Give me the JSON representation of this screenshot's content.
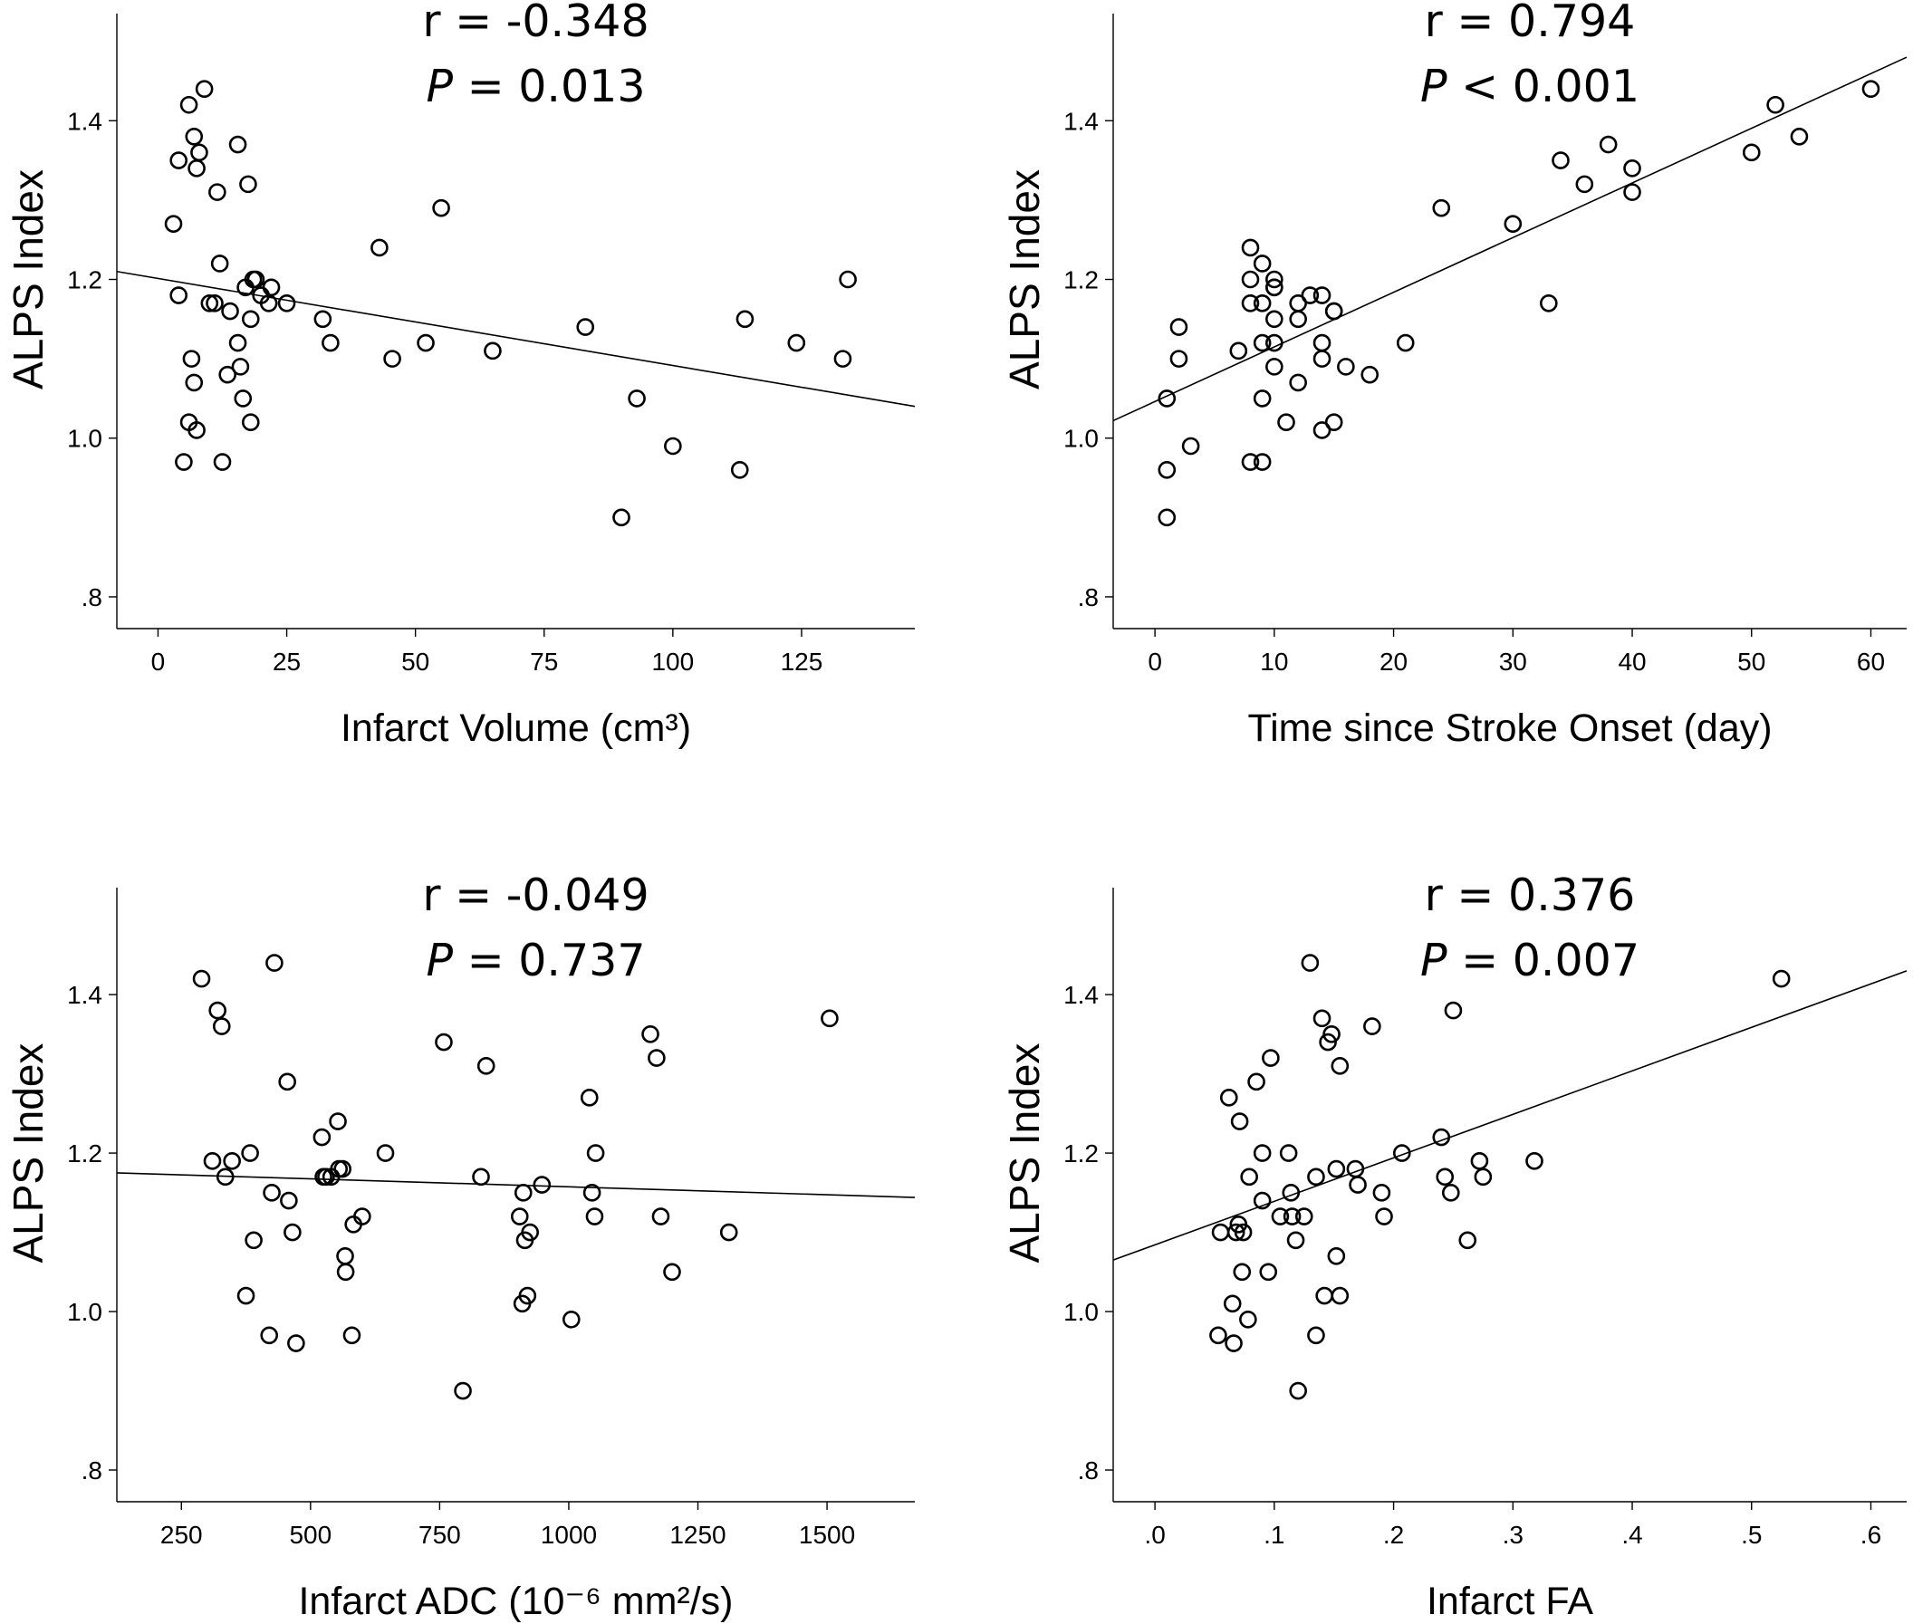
{
  "chart_data": [
    {
      "type": "scatter",
      "xlabel": "Infarct Volume (cm³)",
      "ylabel": "ALPS Index",
      "xlim": [
        -8,
        147
      ],
      "ylim": [
        0.76,
        1.535
      ],
      "xticks": [
        0,
        25,
        50,
        75,
        100,
        125
      ],
      "xtick_labels": [
        "0",
        "25",
        "50",
        "75",
        "100",
        "125"
      ],
      "yticks": [
        0.8,
        1.0,
        1.2,
        1.4
      ],
      "ytick_labels": [
        ".8",
        "1.0",
        "1.2",
        "1.4"
      ],
      "r_text": "r = -0.348",
      "p_label": "P",
      "p_text": " = 0.013",
      "fit_line": {
        "x1": -8,
        "y1": 1.21,
        "x2": 147,
        "y2": 1.04
      },
      "points": [
        [
          3,
          1.27
        ],
        [
          4,
          1.35
        ],
        [
          4,
          1.18
        ],
        [
          5,
          0.97
        ],
        [
          6,
          1.02
        ],
        [
          6,
          1.42
        ],
        [
          6.5,
          1.1
        ],
        [
          7,
          1.07
        ],
        [
          7,
          1.38
        ],
        [
          7.5,
          1.34
        ],
        [
          7.5,
          1.01
        ],
        [
          8,
          1.36
        ],
        [
          9,
          1.44
        ],
        [
          10,
          1.17
        ],
        [
          11,
          1.17
        ],
        [
          11.5,
          1.31
        ],
        [
          12,
          1.22
        ],
        [
          12.5,
          0.97
        ],
        [
          13.5,
          1.08
        ],
        [
          14,
          1.16
        ],
        [
          15.5,
          1.12
        ],
        [
          15.5,
          1.37
        ],
        [
          16,
          1.09
        ],
        [
          16.5,
          1.05
        ],
        [
          17,
          1.19
        ],
        [
          17.5,
          1.32
        ],
        [
          18,
          1.15
        ],
        [
          18,
          1.02
        ],
        [
          18.5,
          1.2
        ],
        [
          19,
          1.2
        ],
        [
          20,
          1.18
        ],
        [
          21.5,
          1.17
        ],
        [
          22,
          1.19
        ],
        [
          25,
          1.17
        ],
        [
          32,
          1.15
        ],
        [
          33.5,
          1.12
        ],
        [
          43,
          1.24
        ],
        [
          45.5,
          1.1
        ],
        [
          52,
          1.12
        ],
        [
          55,
          1.29
        ],
        [
          65,
          1.11
        ],
        [
          83,
          1.14
        ],
        [
          90,
          0.9
        ],
        [
          93,
          1.05
        ],
        [
          100,
          0.99
        ],
        [
          113,
          0.96
        ],
        [
          114,
          1.15
        ],
        [
          124,
          1.12
        ],
        [
          133,
          1.1
        ],
        [
          134,
          1.2
        ]
      ]
    },
    {
      "type": "scatter",
      "xlabel": "Time since Stroke Onset (day)",
      "ylabel": "ALPS Index",
      "xlim": [
        -3.5,
        63
      ],
      "ylim": [
        0.76,
        1.535
      ],
      "xticks": [
        0,
        10,
        20,
        30,
        40,
        50,
        60
      ],
      "xtick_labels": [
        "0",
        "10",
        "20",
        "30",
        "40",
        "50",
        "60"
      ],
      "yticks": [
        0.8,
        1.0,
        1.2,
        1.4
      ],
      "ytick_labels": [
        ".8",
        "1.0",
        "1.2",
        "1.4"
      ],
      "r_text": "r = 0.794",
      "p_label": "P",
      "p_text": " < 0.001",
      "fit_line": {
        "x1": -3.5,
        "y1": 1.022,
        "x2": 63,
        "y2": 1.48
      },
      "points": [
        [
          1,
          0.9
        ],
        [
          1,
          0.96
        ],
        [
          1,
          1.05
        ],
        [
          2,
          1.1
        ],
        [
          2,
          1.14
        ],
        [
          3,
          0.99
        ],
        [
          7,
          1.11
        ],
        [
          8,
          0.97
        ],
        [
          8,
          1.17
        ],
        [
          8,
          1.2
        ],
        [
          8,
          1.24
        ],
        [
          9,
          0.97
        ],
        [
          9,
          1.05
        ],
        [
          9,
          1.12
        ],
        [
          9,
          1.17
        ],
        [
          9,
          1.22
        ],
        [
          10,
          1.09
        ],
        [
          10,
          1.12
        ],
        [
          10,
          1.15
        ],
        [
          10,
          1.19
        ],
        [
          10,
          1.19
        ],
        [
          10,
          1.2
        ],
        [
          11,
          1.02
        ],
        [
          12,
          1.07
        ],
        [
          12,
          1.15
        ],
        [
          12,
          1.17
        ],
        [
          13,
          1.18
        ],
        [
          14,
          1.01
        ],
        [
          14,
          1.1
        ],
        [
          14,
          1.12
        ],
        [
          14,
          1.18
        ],
        [
          15,
          1.02
        ],
        [
          15,
          1.16
        ],
        [
          15,
          1.16
        ],
        [
          16,
          1.09
        ],
        [
          18,
          1.08
        ],
        [
          21,
          1.12
        ],
        [
          24,
          1.29
        ],
        [
          30,
          1.27
        ],
        [
          33,
          1.17
        ],
        [
          34,
          1.35
        ],
        [
          36,
          1.32
        ],
        [
          38,
          1.37
        ],
        [
          40,
          1.31
        ],
        [
          40,
          1.34
        ],
        [
          50,
          1.36
        ],
        [
          52,
          1.42
        ],
        [
          54,
          1.38
        ],
        [
          60,
          1.44
        ]
      ]
    },
    {
      "type": "scatter",
      "xlabel": "Infarct ADC (10⁻⁶ mm²/s)",
      "ylabel": "ALPS Index",
      "xlim": [
        125,
        1670
      ],
      "ylim": [
        0.76,
        1.535
      ],
      "xticks": [
        250,
        500,
        750,
        1000,
        1250,
        1500
      ],
      "xtick_labels": [
        "250",
        "500",
        "750",
        "1000",
        "1250",
        "1500"
      ],
      "yticks": [
        0.8,
        1.0,
        1.2,
        1.4
      ],
      "ytick_labels": [
        ".8",
        "1.0",
        "1.2",
        "1.4"
      ],
      "r_text": "r = -0.049",
      "p_label": "P",
      "p_text": " = 0.737",
      "fit_line": {
        "x1": 125,
        "y1": 1.175,
        "x2": 1670,
        "y2": 1.144
      },
      "points": [
        [
          289,
          1.42
        ],
        [
          310,
          1.19
        ],
        [
          320,
          1.38
        ],
        [
          328,
          1.36
        ],
        [
          335,
          1.17
        ],
        [
          348,
          1.19
        ],
        [
          375,
          1.02
        ],
        [
          383,
          1.2
        ],
        [
          390,
          1.09
        ],
        [
          420,
          0.97
        ],
        [
          425,
          1.15
        ],
        [
          430,
          1.44
        ],
        [
          455,
          1.29
        ],
        [
          458,
          1.14
        ],
        [
          465,
          1.1
        ],
        [
          472,
          0.96
        ],
        [
          522,
          1.22
        ],
        [
          525,
          1.17
        ],
        [
          530,
          1.17
        ],
        [
          540,
          1.17
        ],
        [
          553,
          1.24
        ],
        [
          555,
          1.18
        ],
        [
          562,
          1.18
        ],
        [
          567,
          1.07
        ],
        [
          568,
          1.05
        ],
        [
          580,
          0.97
        ],
        [
          583,
          1.11
        ],
        [
          600,
          1.12
        ],
        [
          645,
          1.2
        ],
        [
          758,
          1.34
        ],
        [
          795,
          0.9
        ],
        [
          830,
          1.17
        ],
        [
          840,
          1.31
        ],
        [
          905,
          1.12
        ],
        [
          910,
          1.01
        ],
        [
          912,
          1.15
        ],
        [
          915,
          1.09
        ],
        [
          920,
          1.02
        ],
        [
          925,
          1.1
        ],
        [
          948,
          1.16
        ],
        [
          1005,
          0.99
        ],
        [
          1040,
          1.27
        ],
        [
          1045,
          1.15
        ],
        [
          1050,
          1.12
        ],
        [
          1052,
          1.2
        ],
        [
          1158,
          1.35
        ],
        [
          1170,
          1.32
        ],
        [
          1178,
          1.12
        ],
        [
          1200,
          1.05
        ],
        [
          1310,
          1.1
        ],
        [
          1505,
          1.37
        ]
      ]
    },
    {
      "type": "scatter",
      "xlabel": "Infarct FA",
      "ylabel": "ALPS Index",
      "xlim": [
        -0.035,
        0.63
      ],
      "ylim": [
        0.76,
        1.535
      ],
      "xticks": [
        0.0,
        0.1,
        0.2,
        0.3,
        0.4,
        0.5,
        0.6
      ],
      "xtick_labels": [
        ".0",
        ".1",
        ".2",
        ".3",
        ".4",
        ".5",
        ".6"
      ],
      "yticks": [
        0.8,
        1.0,
        1.2,
        1.4
      ],
      "ytick_labels": [
        ".8",
        "1.0",
        "1.2",
        "1.4"
      ],
      "r_text": "r = 0.376",
      "p_label": "P",
      "p_text": " = 0.007",
      "fit_line": {
        "x1": -0.035,
        "y1": 1.065,
        "x2": 0.63,
        "y2": 1.43
      },
      "points": [
        [
          0.053,
          0.97
        ],
        [
          0.055,
          1.1
        ],
        [
          0.062,
          1.27
        ],
        [
          0.065,
          1.01
        ],
        [
          0.066,
          0.96
        ],
        [
          0.068,
          1.1
        ],
        [
          0.07,
          1.11
        ],
        [
          0.071,
          1.24
        ],
        [
          0.073,
          1.05
        ],
        [
          0.074,
          1.1
        ],
        [
          0.078,
          0.99
        ],
        [
          0.079,
          1.17
        ],
        [
          0.085,
          1.29
        ],
        [
          0.09,
          1.14
        ],
        [
          0.09,
          1.2
        ],
        [
          0.095,
          1.05
        ],
        [
          0.097,
          1.32
        ],
        [
          0.105,
          1.12
        ],
        [
          0.112,
          1.2
        ],
        [
          0.114,
          1.15
        ],
        [
          0.115,
          1.12
        ],
        [
          0.118,
          1.09
        ],
        [
          0.12,
          0.9
        ],
        [
          0.125,
          1.12
        ],
        [
          0.13,
          1.44
        ],
        [
          0.135,
          0.97
        ],
        [
          0.135,
          1.17
        ],
        [
          0.14,
          1.37
        ],
        [
          0.142,
          1.02
        ],
        [
          0.145,
          1.34
        ],
        [
          0.148,
          1.35
        ],
        [
          0.152,
          1.18
        ],
        [
          0.152,
          1.07
        ],
        [
          0.155,
          1.31
        ],
        [
          0.155,
          1.02
        ],
        [
          0.168,
          1.18
        ],
        [
          0.17,
          1.16
        ],
        [
          0.182,
          1.36
        ],
        [
          0.19,
          1.15
        ],
        [
          0.192,
          1.12
        ],
        [
          0.207,
          1.2
        ],
        [
          0.24,
          1.22
        ],
        [
          0.243,
          1.17
        ],
        [
          0.248,
          1.15
        ],
        [
          0.25,
          1.38
        ],
        [
          0.262,
          1.09
        ],
        [
          0.272,
          1.19
        ],
        [
          0.275,
          1.17
        ],
        [
          0.318,
          1.19
        ],
        [
          0.525,
          1.42
        ]
      ]
    }
  ]
}
